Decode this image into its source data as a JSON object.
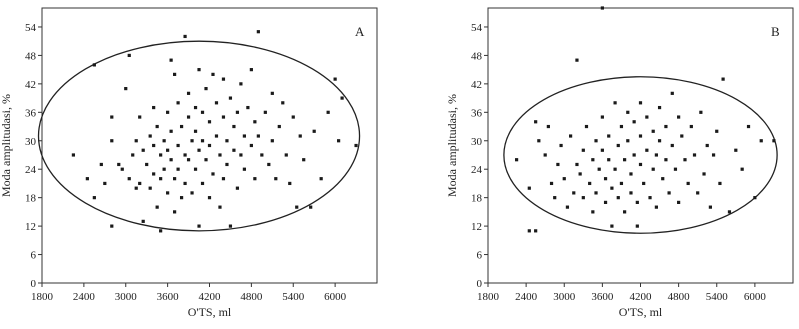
{
  "chart_data": [
    {
      "type": "scatter",
      "panel_label": "A",
      "xlabel": "O'TS, ml",
      "ylabel": "Moda amplitudasi, %",
      "x_ticks": [
        1800,
        2400,
        3000,
        3600,
        4200,
        4800,
        5400,
        6000
      ],
      "y_ticks": [
        0,
        6,
        12,
        18,
        24,
        30,
        36,
        42,
        48,
        54
      ],
      "xlim": [
        1800,
        6600
      ],
      "ylim": [
        0,
        58
      ],
      "ellipse": {
        "cx": 4050,
        "cy": 31,
        "rx": 2300,
        "ry": 20
      },
      "points": [
        [
          2250,
          27
        ],
        [
          2450,
          22
        ],
        [
          2550,
          18
        ],
        [
          2550,
          46
        ],
        [
          2650,
          25
        ],
        [
          2700,
          21
        ],
        [
          2800,
          12
        ],
        [
          2800,
          30
        ],
        [
          2800,
          35
        ],
        [
          2900,
          25
        ],
        [
          2950,
          24
        ],
        [
          3000,
          41
        ],
        [
          3050,
          48
        ],
        [
          3050,
          22
        ],
        [
          3100,
          27
        ],
        [
          3150,
          30
        ],
        [
          3150,
          20
        ],
        [
          3200,
          35
        ],
        [
          3200,
          21
        ],
        [
          3250,
          13
        ],
        [
          3250,
          28
        ],
        [
          3300,
          25
        ],
        [
          3350,
          31
        ],
        [
          3350,
          20
        ],
        [
          3400,
          37
        ],
        [
          3400,
          23
        ],
        [
          3400,
          29
        ],
        [
          3450,
          33
        ],
        [
          3450,
          16
        ],
        [
          3500,
          27
        ],
        [
          3500,
          22
        ],
        [
          3500,
          11
        ],
        [
          3550,
          30
        ],
        [
          3550,
          24
        ],
        [
          3600,
          36
        ],
        [
          3600,
          28
        ],
        [
          3600,
          19
        ],
        [
          3650,
          47
        ],
        [
          3650,
          32
        ],
        [
          3650,
          26
        ],
        [
          3700,
          44
        ],
        [
          3700,
          22
        ],
        [
          3700,
          15
        ],
        [
          3750,
          38
        ],
        [
          3750,
          29
        ],
        [
          3750,
          24
        ],
        [
          3800,
          33
        ],
        [
          3800,
          18
        ],
        [
          3850,
          52
        ],
        [
          3850,
          27
        ],
        [
          3850,
          21
        ],
        [
          3900,
          40
        ],
        [
          3900,
          35
        ],
        [
          3900,
          26
        ],
        [
          3950,
          30
        ],
        [
          3950,
          19
        ],
        [
          4000,
          37
        ],
        [
          4000,
          32
        ],
        [
          4000,
          24
        ],
        [
          4050,
          45
        ],
        [
          4050,
          28
        ],
        [
          4050,
          12
        ],
        [
          4100,
          36
        ],
        [
          4100,
          21
        ],
        [
          4100,
          30
        ],
        [
          4150,
          41
        ],
        [
          4150,
          26
        ],
        [
          4200,
          34
        ],
        [
          4200,
          29
        ],
        [
          4200,
          18
        ],
        [
          4250,
          44
        ],
        [
          4250,
          23
        ],
        [
          4300,
          38
        ],
        [
          4300,
          31
        ],
        [
          4350,
          27
        ],
        [
          4350,
          16
        ],
        [
          4400,
          43
        ],
        [
          4400,
          35
        ],
        [
          4400,
          22
        ],
        [
          4450,
          30
        ],
        [
          4450,
          25
        ],
        [
          4500,
          39
        ],
        [
          4500,
          12
        ],
        [
          4550,
          33
        ],
        [
          4550,
          28
        ],
        [
          4600,
          36
        ],
        [
          4600,
          20
        ],
        [
          4650,
          42
        ],
        [
          4650,
          27
        ],
        [
          4700,
          31
        ],
        [
          4700,
          24
        ],
        [
          4750,
          37
        ],
        [
          4800,
          45
        ],
        [
          4800,
          29
        ],
        [
          4850,
          34
        ],
        [
          4850,
          22
        ],
        [
          4900,
          53
        ],
        [
          4900,
          31
        ],
        [
          4950,
          27
        ],
        [
          5000,
          36
        ],
        [
          5050,
          25
        ],
        [
          5100,
          40
        ],
        [
          5100,
          30
        ],
        [
          5150,
          22
        ],
        [
          5200,
          33
        ],
        [
          5250,
          38
        ],
        [
          5300,
          27
        ],
        [
          5350,
          21
        ],
        [
          5400,
          35
        ],
        [
          5450,
          16
        ],
        [
          5500,
          31
        ],
        [
          5550,
          26
        ],
        [
          5650,
          16
        ],
        [
          5700,
          32
        ],
        [
          5800,
          22
        ],
        [
          5900,
          36
        ],
        [
          6000,
          43
        ],
        [
          6050,
          30
        ],
        [
          6100,
          39
        ],
        [
          6300,
          29
        ]
      ]
    },
    {
      "type": "scatter",
      "panel_label": "B",
      "xlabel": "O'TS, ml",
      "ylabel": "Moda amplitudasi, %",
      "x_ticks": [
        1800,
        2400,
        3000,
        3600,
        4200,
        4800,
        5400,
        6000
      ],
      "y_ticks": [
        0,
        6,
        12,
        18,
        24,
        30,
        36,
        42,
        48,
        54
      ],
      "xlim": [
        1800,
        6600
      ],
      "ylim": [
        0,
        58
      ],
      "ellipse": {
        "cx": 4200,
        "cy": 27,
        "rx": 2150,
        "ry": 16.5
      },
      "points": [
        [
          2250,
          26
        ],
        [
          2450,
          11
        ],
        [
          2450,
          20
        ],
        [
          2550,
          34
        ],
        [
          2550,
          11
        ],
        [
          2600,
          30
        ],
        [
          2700,
          27
        ],
        [
          2750,
          33
        ],
        [
          2800,
          21
        ],
        [
          2850,
          18
        ],
        [
          2900,
          25
        ],
        [
          2950,
          29
        ],
        [
          3000,
          22
        ],
        [
          3050,
          16
        ],
        [
          3100,
          31
        ],
        [
          3150,
          19
        ],
        [
          3200,
          47
        ],
        [
          3200,
          25
        ],
        [
          3250,
          23
        ],
        [
          3300,
          28
        ],
        [
          3300,
          18
        ],
        [
          3350,
          33
        ],
        [
          3400,
          21
        ],
        [
          3450,
          26
        ],
        [
          3450,
          15
        ],
        [
          3500,
          30
        ],
        [
          3500,
          19
        ],
        [
          3550,
          24
        ],
        [
          3600,
          58
        ],
        [
          3600,
          35
        ],
        [
          3600,
          28
        ],
        [
          3650,
          22
        ],
        [
          3650,
          17
        ],
        [
          3700,
          31
        ],
        [
          3700,
          26
        ],
        [
          3750,
          12
        ],
        [
          3750,
          20
        ],
        [
          3800,
          38
        ],
        [
          3800,
          24
        ],
        [
          3850,
          29
        ],
        [
          3850,
          18
        ],
        [
          3900,
          33
        ],
        [
          3900,
          21
        ],
        [
          3950,
          26
        ],
        [
          3950,
          15
        ],
        [
          4000,
          36
        ],
        [
          4000,
          30
        ],
        [
          4050,
          23
        ],
        [
          4050,
          19
        ],
        [
          4100,
          34
        ],
        [
          4100,
          27
        ],
        [
          4150,
          12
        ],
        [
          4150,
          17
        ],
        [
          4200,
          38
        ],
        [
          4200,
          31
        ],
        [
          4200,
          25
        ],
        [
          4250,
          21
        ],
        [
          4300,
          35
        ],
        [
          4300,
          28
        ],
        [
          4350,
          18
        ],
        [
          4400,
          32
        ],
        [
          4400,
          24
        ],
        [
          4450,
          27
        ],
        [
          4450,
          16
        ],
        [
          4500,
          37
        ],
        [
          4500,
          30
        ],
        [
          4550,
          22
        ],
        [
          4600,
          33
        ],
        [
          4600,
          26
        ],
        [
          4650,
          19
        ],
        [
          4700,
          40
        ],
        [
          4700,
          29
        ],
        [
          4750,
          24
        ],
        [
          4800,
          35
        ],
        [
          4800,
          17
        ],
        [
          4850,
          31
        ],
        [
          4900,
          26
        ],
        [
          4950,
          21
        ],
        [
          5000,
          33
        ],
        [
          5050,
          27
        ],
        [
          5100,
          19
        ],
        [
          5150,
          36
        ],
        [
          5200,
          23
        ],
        [
          5250,
          29
        ],
        [
          5300,
          16
        ],
        [
          5350,
          27
        ],
        [
          5400,
          32
        ],
        [
          5450,
          21
        ],
        [
          5500,
          43
        ],
        [
          5600,
          15
        ],
        [
          5700,
          28
        ],
        [
          5800,
          24
        ],
        [
          5900,
          33
        ],
        [
          6000,
          18
        ],
        [
          6100,
          30
        ],
        [
          6300,
          30
        ]
      ]
    }
  ]
}
